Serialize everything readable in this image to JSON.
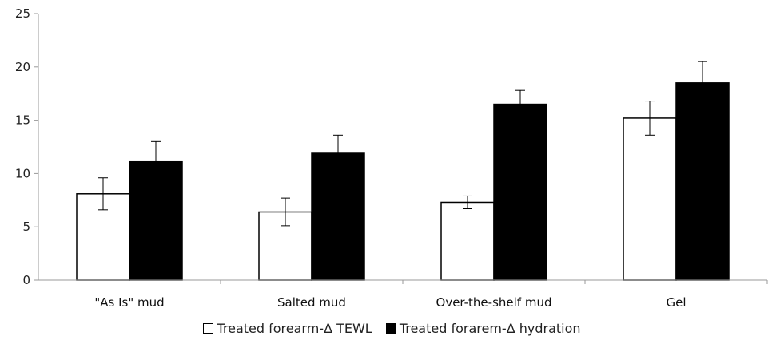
{
  "chart_data": {
    "type": "bar",
    "categories": [
      "\"As Is\" mud",
      "Salted mud",
      "Over-the-shelf mud",
      "Gel"
    ],
    "series": [
      {
        "name": "Treated forearm-Δ TEWL",
        "values": [
          8.1,
          6.4,
          7.3,
          15.2
        ],
        "errors": [
          1.5,
          1.3,
          0.6,
          1.6
        ],
        "color": "#ffffff"
      },
      {
        "name": "Treated forarem-Δ hydration",
        "values": [
          11.1,
          11.9,
          16.5,
          18.5
        ],
        "errors": [
          1.9,
          1.7,
          1.3,
          2.0
        ],
        "color": "#000000"
      }
    ],
    "yticks": [
      "0",
      "5",
      "10",
      "15",
      "20",
      "25"
    ],
    "ylim": [
      0,
      25
    ],
    "grid": false,
    "legend_position": "bottom"
  }
}
